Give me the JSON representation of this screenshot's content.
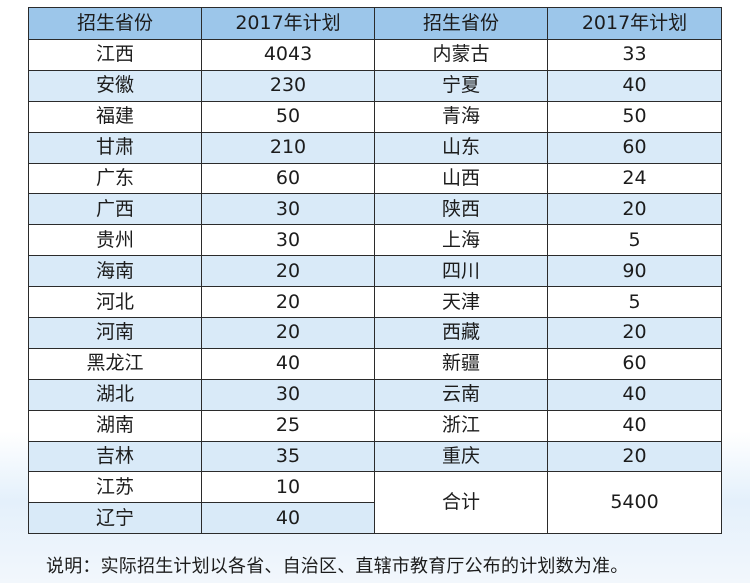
{
  "table": {
    "headers": [
      "招生省份",
      "2017年计划",
      "招生省份",
      "2017年计划"
    ],
    "left": [
      {
        "province": "江西",
        "plan": "4043"
      },
      {
        "province": "安徽",
        "plan": "230"
      },
      {
        "province": "福建",
        "plan": "50"
      },
      {
        "province": "甘肃",
        "plan": "210"
      },
      {
        "province": "广东",
        "plan": "60"
      },
      {
        "province": "广西",
        "plan": "30"
      },
      {
        "province": "贵州",
        "plan": "30"
      },
      {
        "province": "海南",
        "plan": "20"
      },
      {
        "province": "河北",
        "plan": "20"
      },
      {
        "province": "河南",
        "plan": "20"
      },
      {
        "province": "黑龙江",
        "plan": "40"
      },
      {
        "province": "湖北",
        "plan": "30"
      },
      {
        "province": "湖南",
        "plan": "25"
      },
      {
        "province": "吉林",
        "plan": "35"
      },
      {
        "province": "江苏",
        "plan": "10"
      },
      {
        "province": "辽宁",
        "plan": "40"
      }
    ],
    "right": [
      {
        "province": "内蒙古",
        "plan": "33"
      },
      {
        "province": "宁夏",
        "plan": "40"
      },
      {
        "province": "青海",
        "plan": "50"
      },
      {
        "province": "山东",
        "plan": "60"
      },
      {
        "province": "山西",
        "plan": "24"
      },
      {
        "province": "陕西",
        "plan": "20"
      },
      {
        "province": "上海",
        "plan": "5"
      },
      {
        "province": "四川",
        "plan": "90"
      },
      {
        "province": "天津",
        "plan": "5"
      },
      {
        "province": "西藏",
        "plan": "20"
      },
      {
        "province": "新疆",
        "plan": "60"
      },
      {
        "province": "云南",
        "plan": "40"
      },
      {
        "province": "浙江",
        "plan": "40"
      },
      {
        "province": "重庆",
        "plan": "20"
      }
    ],
    "total": {
      "label": "合计",
      "value": "5400"
    }
  },
  "note": "说明：实际招生计划以各省、自治区、直辖市教育厅公布的计划数为准。"
}
